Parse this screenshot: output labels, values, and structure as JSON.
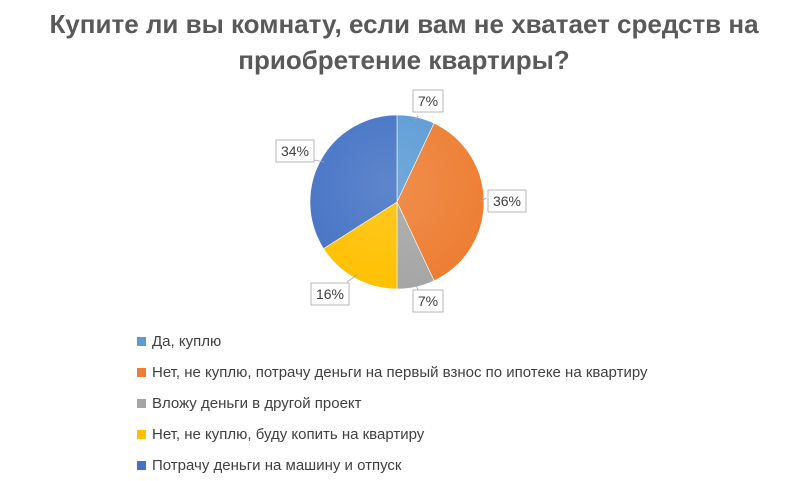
{
  "chart_data": {
    "type": "pie",
    "title_lines": [
      "Купите ли вы комнату, если вам не хватает средств на",
      "приобретение квартиры?"
    ],
    "categories": [
      "Да, куплю",
      "Нет, не куплю, потрачу деньги на первый взнос по ипотеке на квартиру",
      "Вложу деньги в другой проект",
      "Нет, не куплю, буду копить на квартиру",
      "Потрачу деньги на машину и отпуск"
    ],
    "values": [
      7,
      36,
      7,
      16,
      34
    ],
    "data_labels": [
      "7%",
      "36%",
      "7%",
      "16%",
      "34%"
    ],
    "colors": [
      "#5B9BD5",
      "#ED7D31",
      "#A5A5A5",
      "#FFC000",
      "#4472C4"
    ],
    "legend_position": "bottom",
    "start_angle": "12 o'clock, clockwise"
  }
}
